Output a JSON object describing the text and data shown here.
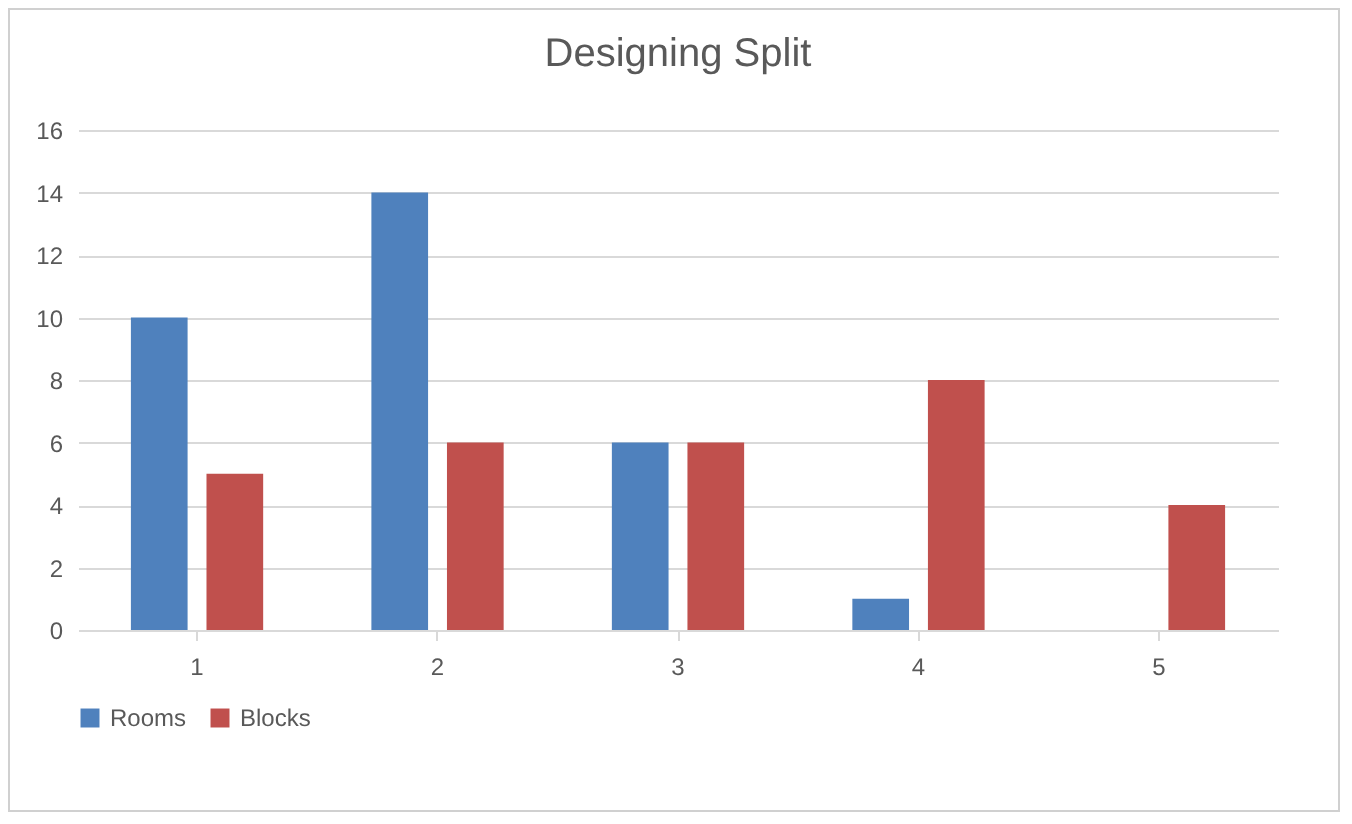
{
  "chart_data": {
    "type": "bar",
    "title": "Designing Split",
    "categories": [
      "1",
      "2",
      "3",
      "4",
      "5"
    ],
    "series": [
      {
        "name": "Rooms",
        "color": "#4f81bd",
        "values": [
          10,
          14,
          6,
          1,
          0
        ]
      },
      {
        "name": "Blocks",
        "color": "#c0504d",
        "values": [
          5,
          6,
          6,
          8,
          4
        ]
      }
    ],
    "ylim": [
      0,
      16
    ],
    "yticks": [
      0,
      2,
      4,
      6,
      8,
      10,
      12,
      14,
      16
    ],
    "grid": "y",
    "legend": "bottom"
  }
}
